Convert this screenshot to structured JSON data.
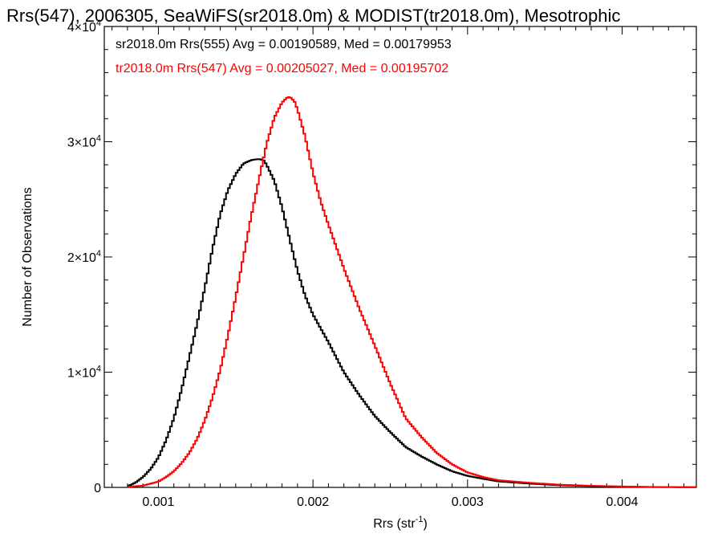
{
  "chart_data": {
    "type": "line",
    "title": "Rrs(547), 2006305, SeaWiFS(sr2018.0m) & MODIST(tr2018.0m), Mesotrophic",
    "xlabel": "Rrs (str",
    "xlabel_sup": "-1",
    "xlabel_tail": ")",
    "ylabel": "Number of Observations",
    "xlim": [
      0.00065,
      0.00448
    ],
    "ylim": [
      0,
      40000
    ],
    "x_ticks": [
      {
        "value": 0.001,
        "label": "0.001"
      },
      {
        "value": 0.002,
        "label": "0.002"
      },
      {
        "value": 0.003,
        "label": "0.003"
      },
      {
        "value": 0.004,
        "label": "0.004"
      }
    ],
    "y_ticks": [
      {
        "value": 0,
        "mant": "0",
        "exp": ""
      },
      {
        "value": 10000,
        "mant": "1×10",
        "exp": "4"
      },
      {
        "value": 20000,
        "mant": "2×10",
        "exp": "4"
      },
      {
        "value": 30000,
        "mant": "3×10",
        "exp": "4"
      },
      {
        "value": 40000,
        "mant": "4×10",
        "exp": "4"
      }
    ],
    "step_style": "histogram",
    "grid": false,
    "legend_placement": "top-left",
    "series": [
      {
        "name": "sr2018.0m Rrs(555) Avg = 0.00190589, Med = 0.00179953",
        "color": "#000000",
        "x": [
          0.0008,
          0.00085,
          0.0009,
          0.00095,
          0.001,
          0.00105,
          0.0011,
          0.00115,
          0.0012,
          0.00125,
          0.0013,
          0.00135,
          0.0014,
          0.00145,
          0.0015,
          0.00155,
          0.0016,
          0.00165,
          0.00168,
          0.0017,
          0.00175,
          0.0018,
          0.00185,
          0.0019,
          0.00195,
          0.002,
          0.0021,
          0.0022,
          0.0023,
          0.0024,
          0.0025,
          0.0026,
          0.0027,
          0.0028,
          0.0029,
          0.003,
          0.0031,
          0.0032,
          0.0034,
          0.0036,
          0.0038,
          0.004,
          0.0042,
          0.00448
        ],
        "y": [
          100,
          400,
          900,
          1600,
          2600,
          4100,
          6000,
          8500,
          11300,
          14200,
          17300,
          20700,
          23700,
          25800,
          27200,
          28100,
          28400,
          28500,
          28400,
          28000,
          26600,
          24300,
          21500,
          18800,
          16600,
          15000,
          12600,
          10000,
          8000,
          6200,
          4800,
          3500,
          2700,
          2000,
          1400,
          1000,
          750,
          520,
          330,
          190,
          110,
          60,
          30,
          15
        ]
      },
      {
        "name": "tr2018.0m Rrs(547) Avg = 0.00205027, Med = 0.00195702",
        "color": "#ff0000",
        "x": [
          0.0008,
          0.0009,
          0.001,
          0.00105,
          0.0011,
          0.00115,
          0.0012,
          0.00125,
          0.0013,
          0.00135,
          0.0014,
          0.00145,
          0.0015,
          0.00155,
          0.0016,
          0.00165,
          0.0017,
          0.00175,
          0.0018,
          0.00183,
          0.00185,
          0.00188,
          0.0019,
          0.00195,
          0.002,
          0.00205,
          0.0021,
          0.0022,
          0.0023,
          0.0024,
          0.0025,
          0.0026,
          0.0027,
          0.0028,
          0.0029,
          0.003,
          0.0031,
          0.0032,
          0.0034,
          0.0036,
          0.0038,
          0.004,
          0.0042,
          0.00448
        ],
        "y": [
          50,
          150,
          500,
          900,
          1400,
          2100,
          3000,
          4200,
          5800,
          7800,
          10200,
          13200,
          16500,
          20000,
          23500,
          26700,
          29800,
          32100,
          33400,
          33800,
          33900,
          33500,
          32800,
          30400,
          27300,
          24800,
          22800,
          19000,
          15500,
          12300,
          9000,
          6000,
          4400,
          3000,
          2000,
          1300,
          900,
          620,
          400,
          230,
          140,
          80,
          40,
          20
        ]
      }
    ]
  }
}
